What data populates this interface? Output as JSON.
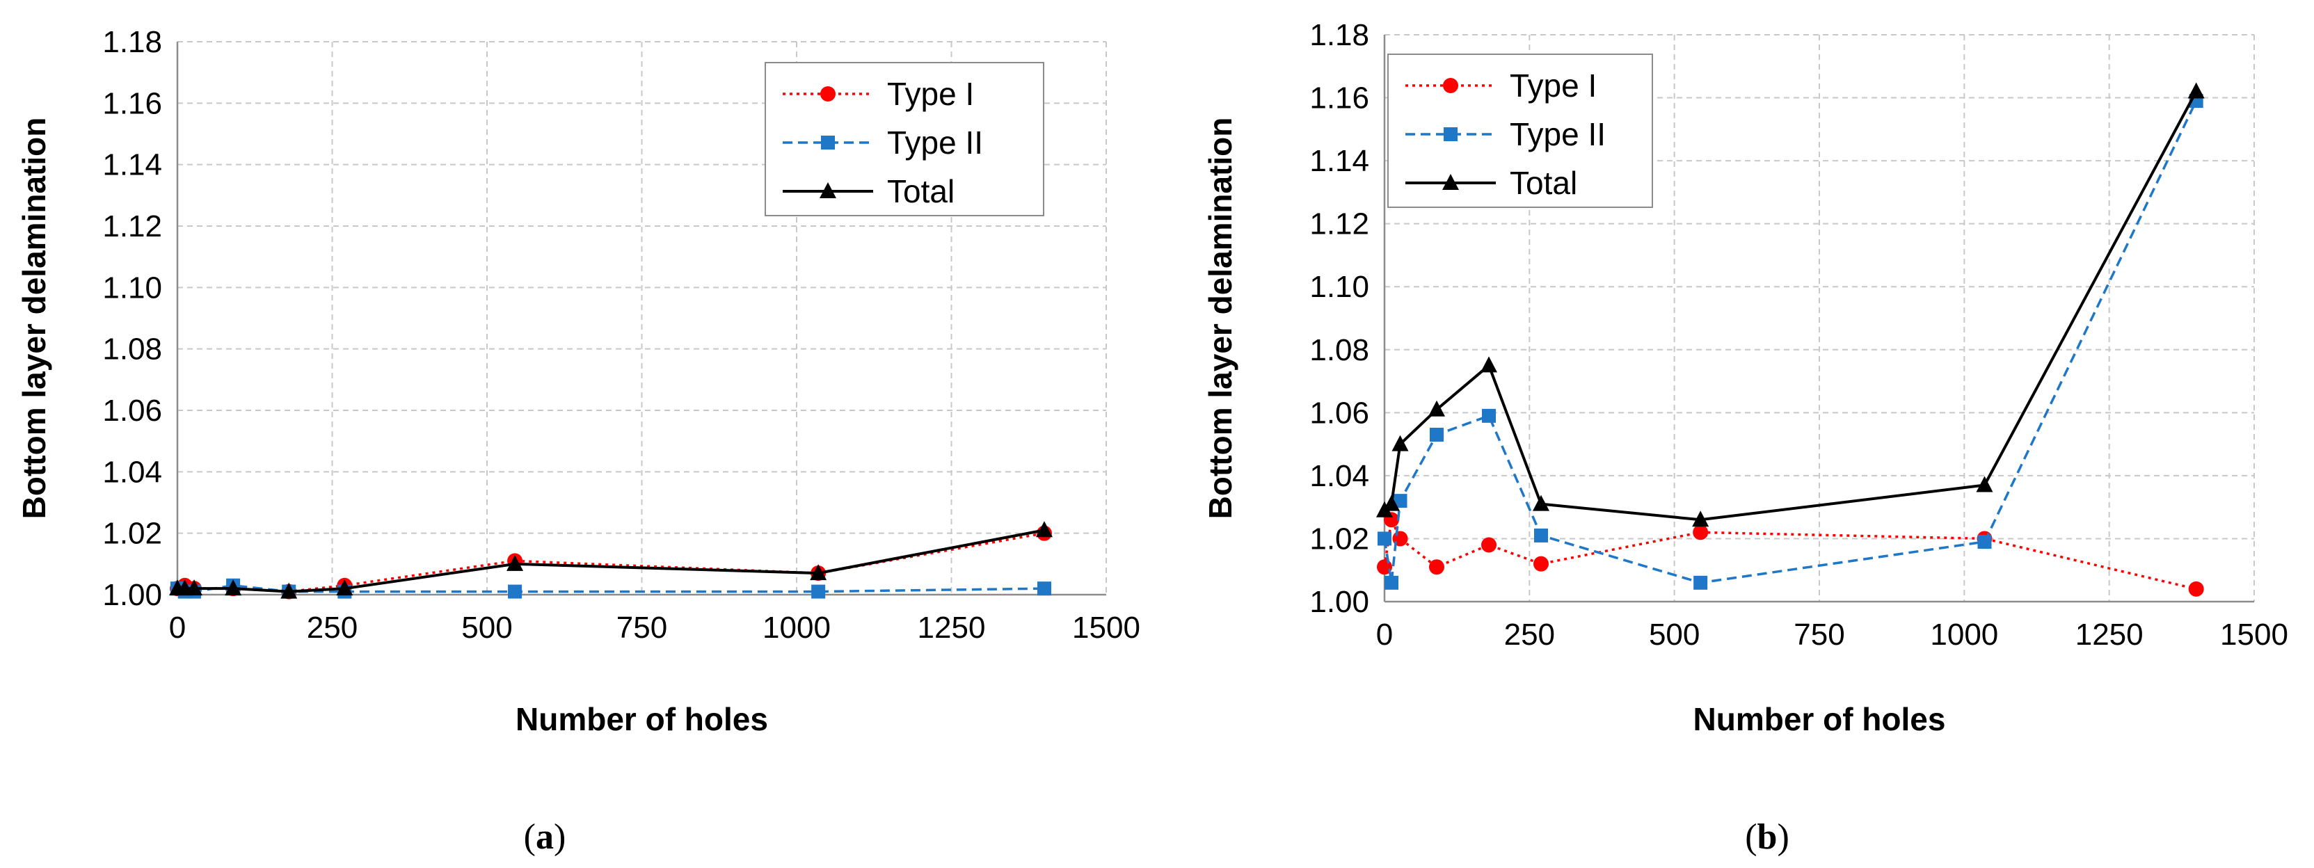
{
  "chart_data": [
    {
      "type": "line",
      "panel_label_prefix": "(",
      "panel_label_letter": "a",
      "panel_label_suffix": ")",
      "xlabel": "Number of holes",
      "ylabel": "Bottom layer delamination",
      "xlim": [
        0,
        1500
      ],
      "ylim": [
        1.0,
        1.18
      ],
      "xticks": [
        0,
        250,
        500,
        750,
        1000,
        1250,
        1500
      ],
      "yticks": [
        1.0,
        1.02,
        1.04,
        1.06,
        1.08,
        1.1,
        1.12,
        1.14,
        1.16,
        1.18
      ],
      "xtick_labels": [
        "0",
        "250",
        "500",
        "750",
        "1000",
        "1250",
        "1500"
      ],
      "ytick_labels": [
        "1.00",
        "1.02",
        "1.04",
        "1.06",
        "1.08",
        "1.10",
        "1.12",
        "1.14",
        "1.16",
        "1.18"
      ],
      "grid": true,
      "legend_position": "top-right",
      "series": [
        {
          "name": "Type I",
          "color": "#ff0000",
          "marker": "circle",
          "dash": "dotted",
          "x": [
            0,
            12,
            27,
            90,
            180,
            270,
            545,
            1035,
            1400
          ],
          "y": [
            1.002,
            1.003,
            1.002,
            1.002,
            1.001,
            1.003,
            1.011,
            1.007,
            1.02
          ]
        },
        {
          "name": "Type II",
          "color": "#1f77c8",
          "marker": "square",
          "dash": "dashed",
          "x": [
            0,
            12,
            27,
            90,
            180,
            270,
            545,
            1035,
            1400
          ],
          "y": [
            1.002,
            1.001,
            1.001,
            1.003,
            1.001,
            1.001,
            1.001,
            1.001,
            1.002
          ]
        },
        {
          "name": "Total",
          "color": "#000000",
          "marker": "triangle",
          "dash": "solid",
          "x": [
            0,
            12,
            27,
            90,
            180,
            270,
            545,
            1035,
            1400
          ],
          "y": [
            1.002,
            1.002,
            1.002,
            1.002,
            1.001,
            1.002,
            1.01,
            1.007,
            1.021
          ]
        }
      ]
    },
    {
      "type": "line",
      "panel_label_prefix": "(",
      "panel_label_letter": "b",
      "panel_label_suffix": ")",
      "xlabel": "Number of holes",
      "ylabel": "Bottom layer delamination",
      "xlim": [
        0,
        1500
      ],
      "ylim": [
        1.0,
        1.18
      ],
      "xticks": [
        0,
        250,
        500,
        750,
        1000,
        1250,
        1500
      ],
      "yticks": [
        1.0,
        1.02,
        1.04,
        1.06,
        1.08,
        1.1,
        1.12,
        1.14,
        1.16,
        1.18
      ],
      "xtick_labels": [
        "0",
        "250",
        "500",
        "750",
        "1000",
        "1250",
        "1500"
      ],
      "ytick_labels": [
        "1.00",
        "1.02",
        "1.04",
        "1.06",
        "1.08",
        "1.10",
        "1.12",
        "1.14",
        "1.16",
        "1.18"
      ],
      "grid": true,
      "legend_position": "top-left",
      "series": [
        {
          "name": "Type I",
          "color": "#ff0000",
          "marker": "circle",
          "dash": "dotted",
          "x": [
            0,
            12,
            27,
            90,
            180,
            270,
            545,
            1035,
            1400
          ],
          "y": [
            1.011,
            1.026,
            1.02,
            1.011,
            1.018,
            1.012,
            1.022,
            1.02,
            1.004
          ]
        },
        {
          "name": "Type II",
          "color": "#1f77c8",
          "marker": "square",
          "dash": "dashed",
          "x": [
            0,
            12,
            27,
            90,
            180,
            270,
            545,
            1035,
            1400
          ],
          "y": [
            1.02,
            1.006,
            1.032,
            1.053,
            1.059,
            1.021,
            1.006,
            1.019,
            1.159
          ]
        },
        {
          "name": "Total",
          "color": "#000000",
          "marker": "triangle",
          "dash": "solid",
          "x": [
            0,
            12,
            27,
            90,
            180,
            270,
            545,
            1035,
            1400
          ],
          "y": [
            1.029,
            1.031,
            1.05,
            1.061,
            1.075,
            1.031,
            1.026,
            1.037,
            1.162
          ]
        }
      ]
    }
  ]
}
